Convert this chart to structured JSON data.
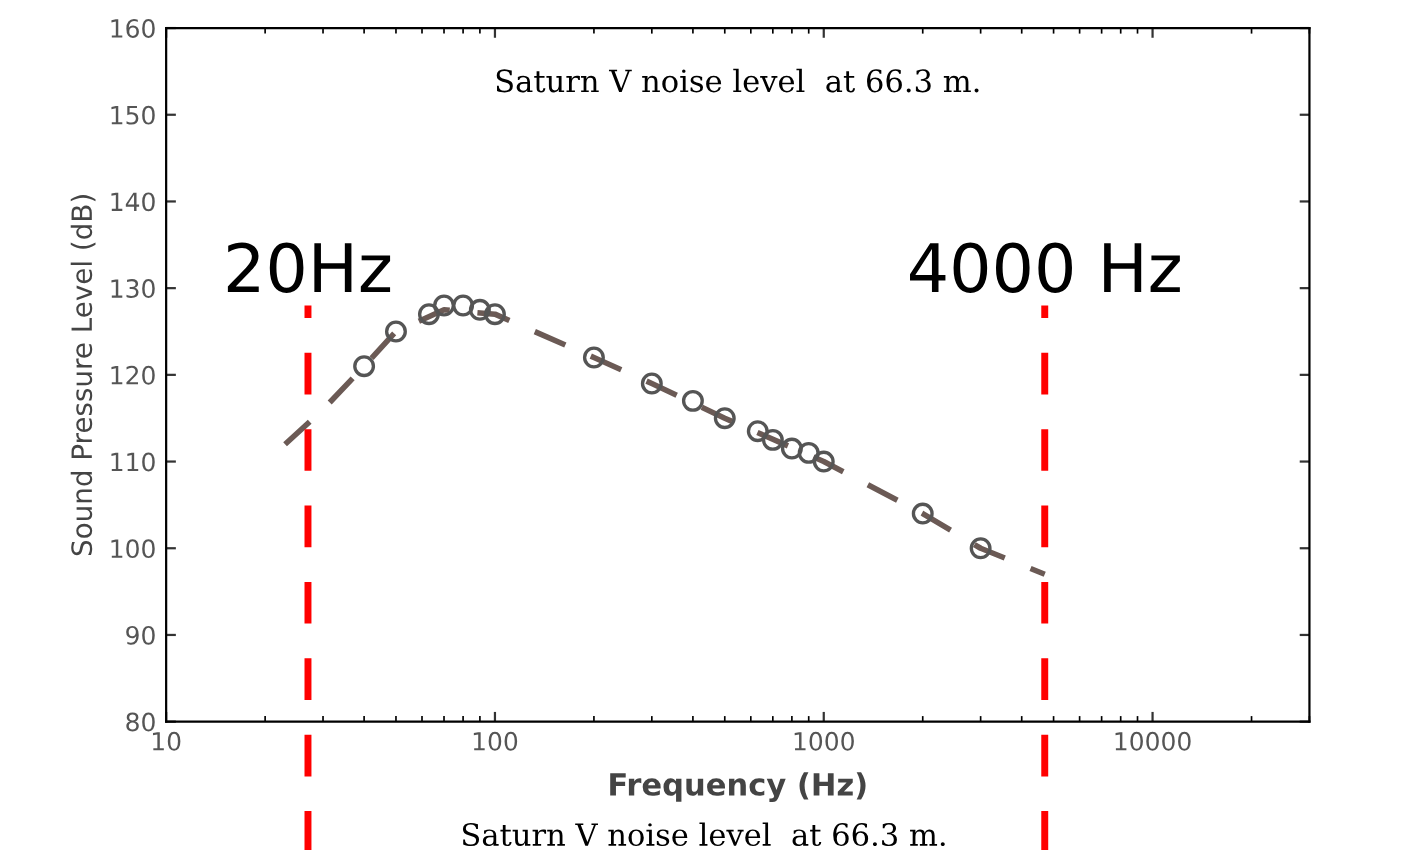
{
  "chart_data": {
    "type": "scatter",
    "xlabel": "Frequency (Hz)",
    "ylabel": "Sound Pressure Level (dB)",
    "log": "x",
    "xlim": [
      10,
      30000
    ],
    "xticks": [
      10,
      100,
      1000,
      10000
    ],
    "ylim": [
      80,
      160
    ],
    "yticks": [
      80,
      90,
      100,
      110,
      120,
      130,
      140,
      150,
      160
    ],
    "grid": false,
    "legend": false,
    "series": [
      {
        "type": "line",
        "line_style": "dashed",
        "marker": "none",
        "color": "#6b5a55",
        "x": [
          23,
          30,
          40,
          50,
          70,
          100,
          200,
          300,
          500,
          1000,
          2000,
          3000,
          4700
        ],
        "values": [
          112,
          116,
          121,
          125,
          127.5,
          127,
          122,
          119,
          115,
          110,
          104,
          100,
          97
        ]
      },
      {
        "marker": "circle",
        "color": "#555555",
        "x": [
          40,
          50,
          63,
          70,
          80,
          90,
          100,
          200,
          300,
          400,
          500,
          630,
          700,
          800,
          900,
          1000,
          2000,
          3000
        ],
        "values": [
          121,
          125,
          127,
          128,
          128,
          127.5,
          127,
          122,
          119,
          117,
          115,
          113.5,
          112.5,
          111.5,
          111,
          110,
          104,
          100
        ]
      }
    ],
    "ref_lines": [
      {
        "axis": "x",
        "value": 27,
        "label": "20Hz",
        "color": "#ff0000",
        "line_style": "dashed"
      },
      {
        "axis": "x",
        "value": 4700,
        "label": "4000 Hz",
        "color": "#ff0000",
        "line_style": "dashed"
      }
    ],
    "annotations": [
      "Saturn V noise level  at 66.3 m.",
      "Saturn V noise level  at 66.3 m."
    ]
  }
}
